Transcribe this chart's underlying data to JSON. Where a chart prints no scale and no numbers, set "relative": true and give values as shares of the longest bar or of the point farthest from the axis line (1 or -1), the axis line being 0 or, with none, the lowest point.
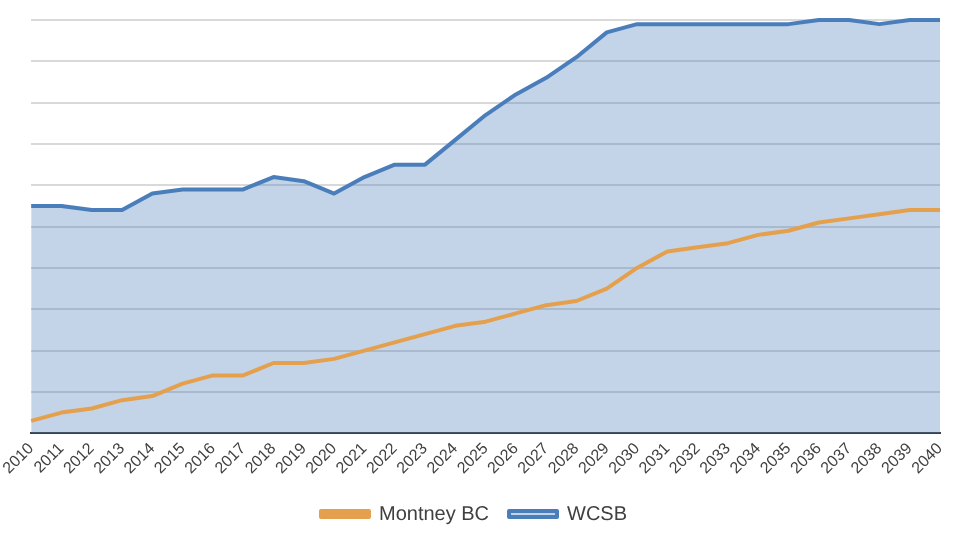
{
  "chart_data": {
    "type": "line",
    "relative": true,
    "grid": "y",
    "legend": "bottom",
    "marker": "none",
    "categories": [
      "2010",
      "2011",
      "2012",
      "2013",
      "2014",
      "2015",
      "2016",
      "2017",
      "2018",
      "2019",
      "2020",
      "2021",
      "2022",
      "2023",
      "2024",
      "2025",
      "2026",
      "2027",
      "2028",
      "2029",
      "2030",
      "2031",
      "2032",
      "2033",
      "2034",
      "2035",
      "2036",
      "2037",
      "2038",
      "2039",
      "2040"
    ],
    "series": [
      {
        "name": "WCSB",
        "type": "area",
        "color": "#4a7ebb",
        "values": [
          0.55,
          0.55,
          0.54,
          0.54,
          0.58,
          0.59,
          0.59,
          0.59,
          0.62,
          0.61,
          0.58,
          0.62,
          0.65,
          0.65,
          0.71,
          0.77,
          0.82,
          0.86,
          0.91,
          0.97,
          0.99,
          0.99,
          0.99,
          0.99,
          0.99,
          0.99,
          1,
          1,
          0.99,
          1,
          1
        ]
      },
      {
        "name": "Montney BC",
        "type": "line",
        "color": "#e4a04c",
        "values": [
          0.03,
          0.05,
          0.06,
          0.08,
          0.09,
          0.12,
          0.14,
          0.14,
          0.17,
          0.17,
          0.18,
          0.2,
          0.22,
          0.24,
          0.26,
          0.27,
          0.29,
          0.31,
          0.32,
          0.35,
          0.4,
          0.44,
          0.45,
          0.46,
          0.48,
          0.49,
          0.51,
          0.52,
          0.53,
          0.54,
          0.54
        ]
      }
    ]
  }
}
